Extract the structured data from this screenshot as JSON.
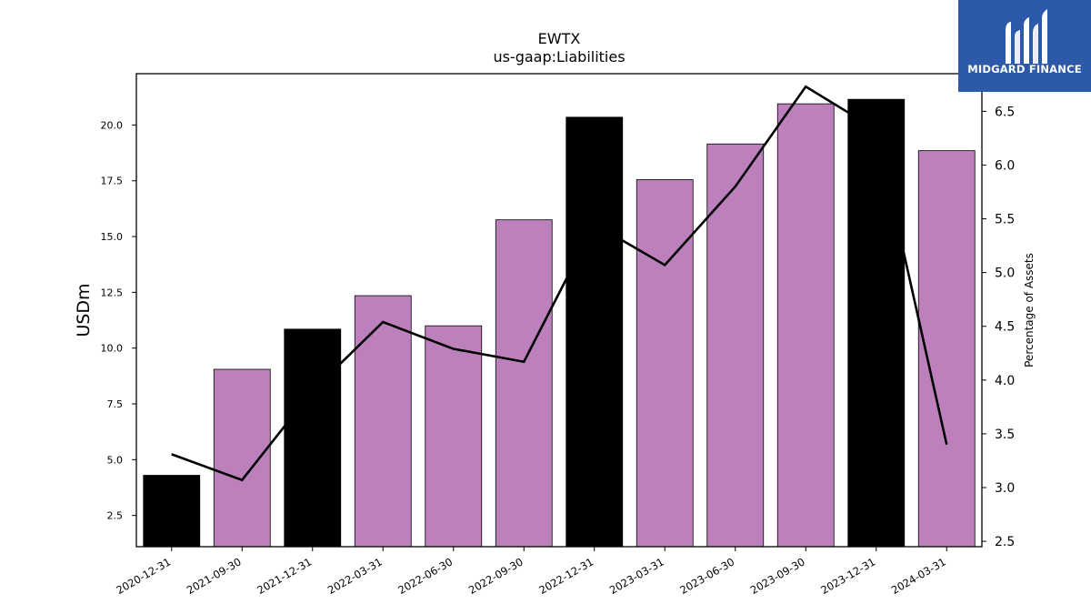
{
  "chart_data": {
    "type": "bar",
    "title": "EWTX",
    "subtitle": "us-gaap:Liabilities",
    "ylabel": "USDm",
    "y2label": "Percentage of Assets",
    "categories": [
      "2020-12-31",
      "2021-09-30",
      "2021-12-31",
      "2022-03-31",
      "2022-06-30",
      "2022-09-30",
      "2022-12-31",
      "2023-03-31",
      "2023-06-30",
      "2023-09-30",
      "2023-12-31",
      "2024-03-31"
    ],
    "series": [
      {
        "values": [
          4.3,
          9.05,
          10.85,
          12.35,
          11.0,
          15.75,
          20.35,
          17.55,
          19.15,
          20.95,
          21.15,
          18.85
        ],
        "axis": "left",
        "colors": [
          "#000000",
          "#bc80bd",
          "#000000",
          "#bc80bd",
          "#bc80bd",
          "#bc80bd",
          "#000000",
          "#bc80bd",
          "#bc80bd",
          "#bc80bd",
          "#000000",
          "#bc80bd"
        ]
      },
      {
        "type": "line",
        "axis": "right",
        "color": "#000000",
        "values": [
          3.31,
          3.07,
          3.9,
          4.54,
          4.29,
          4.17,
          5.45,
          5.07,
          5.8,
          6.73,
          6.33,
          3.4
        ]
      }
    ],
    "ylim": [
      1.1,
      22.3
    ],
    "yticks": [
      2.5,
      5.0,
      7.5,
      10.0,
      12.5,
      15.0,
      17.5,
      20.0
    ],
    "y2lim": [
      2.45,
      6.85
    ],
    "y2ticks": [
      2.5,
      3.0,
      3.5,
      4.0,
      4.5,
      5.0,
      5.5,
      6.0,
      6.5
    ],
    "grid": false
  },
  "logo": {
    "text": "MIDGARD FINANCE",
    "color": "#2c5aa8"
  }
}
